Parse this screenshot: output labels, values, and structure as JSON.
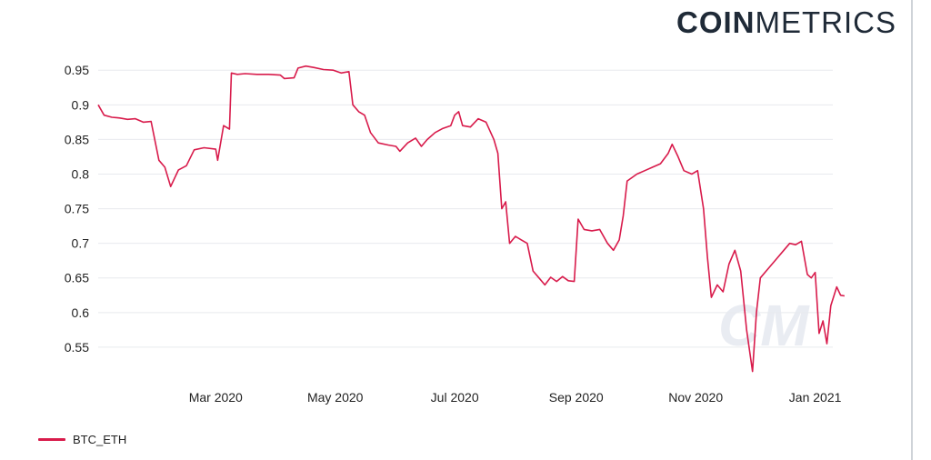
{
  "logo": {
    "bold": "COIN",
    "light": "METRICS"
  },
  "watermark_text": "CM",
  "colors": {
    "line": "#d81b4b",
    "grid": "#e8eaee",
    "text": "#222222"
  },
  "chart_data": {
    "type": "line",
    "x_tick_labels": [
      "Mar 2020",
      "May 2020",
      "Jul 2020",
      "Sep 2020",
      "Nov 2020",
      "Jan 2021"
    ],
    "x_tick_dates": [
      "2020-03-01",
      "2020-05-01",
      "2020-07-01",
      "2020-09-01",
      "2020-11-01",
      "2021-01-01"
    ],
    "xlim": [
      "2020-01-01",
      "2021-01-10"
    ],
    "ylim": [
      0.5,
      0.97
    ],
    "y_ticks": [
      0.55,
      0.6,
      0.65,
      0.7,
      0.75,
      0.8,
      0.85,
      0.9,
      0.95
    ],
    "y_tick_labels": [
      "0.55",
      "0.6",
      "0.65",
      "0.7",
      "0.75",
      "0.8",
      "0.85",
      "0.9",
      "0.95"
    ],
    "grid": true,
    "legend_position": "bottom-left",
    "series": [
      {
        "name": "BTC_ETH",
        "color": "#d81b4b",
        "points": [
          [
            "2020-01-01",
            0.9
          ],
          [
            "2020-01-04",
            0.885
          ],
          [
            "2020-01-08",
            0.882
          ],
          [
            "2020-01-12",
            0.881
          ],
          [
            "2020-01-16",
            0.879
          ],
          [
            "2020-01-20",
            0.88
          ],
          [
            "2020-01-24",
            0.875
          ],
          [
            "2020-01-28",
            0.876
          ],
          [
            "2020-02-01",
            0.82
          ],
          [
            "2020-02-04",
            0.81
          ],
          [
            "2020-02-07",
            0.782
          ],
          [
            "2020-02-11",
            0.806
          ],
          [
            "2020-02-15",
            0.812
          ],
          [
            "2020-02-19",
            0.835
          ],
          [
            "2020-02-24",
            0.838
          ],
          [
            "2020-03-01",
            0.836
          ],
          [
            "2020-03-02",
            0.82
          ],
          [
            "2020-03-05",
            0.87
          ],
          [
            "2020-03-08",
            0.865
          ],
          [
            "2020-03-09",
            0.946
          ],
          [
            "2020-03-12",
            0.944
          ],
          [
            "2020-03-16",
            0.945
          ],
          [
            "2020-03-22",
            0.944
          ],
          [
            "2020-03-28",
            0.944
          ],
          [
            "2020-04-03",
            0.943
          ],
          [
            "2020-04-05",
            0.938
          ],
          [
            "2020-04-10",
            0.939
          ],
          [
            "2020-04-12",
            0.953
          ],
          [
            "2020-04-16",
            0.956
          ],
          [
            "2020-04-20",
            0.954
          ],
          [
            "2020-04-25",
            0.951
          ],
          [
            "2020-04-30",
            0.95
          ],
          [
            "2020-05-04",
            0.946
          ],
          [
            "2020-05-08",
            0.948
          ],
          [
            "2020-05-10",
            0.9
          ],
          [
            "2020-05-13",
            0.89
          ],
          [
            "2020-05-16",
            0.885
          ],
          [
            "2020-05-19",
            0.86
          ],
          [
            "2020-05-23",
            0.845
          ],
          [
            "2020-05-28",
            0.842
          ],
          [
            "2020-06-01",
            0.84
          ],
          [
            "2020-06-03",
            0.833
          ],
          [
            "2020-06-07",
            0.845
          ],
          [
            "2020-06-11",
            0.852
          ],
          [
            "2020-06-14",
            0.84
          ],
          [
            "2020-06-17",
            0.85
          ],
          [
            "2020-06-21",
            0.86
          ],
          [
            "2020-06-25",
            0.866
          ],
          [
            "2020-06-29",
            0.87
          ],
          [
            "2020-07-01",
            0.885
          ],
          [
            "2020-07-03",
            0.89
          ],
          [
            "2020-07-05",
            0.87
          ],
          [
            "2020-07-09",
            0.868
          ],
          [
            "2020-07-13",
            0.88
          ],
          [
            "2020-07-17",
            0.875
          ],
          [
            "2020-07-21",
            0.85
          ],
          [
            "2020-07-23",
            0.83
          ],
          [
            "2020-07-25",
            0.75
          ],
          [
            "2020-07-27",
            0.76
          ],
          [
            "2020-07-29",
            0.7
          ],
          [
            "2020-08-01",
            0.71
          ],
          [
            "2020-08-04",
            0.705
          ],
          [
            "2020-08-07",
            0.7
          ],
          [
            "2020-08-10",
            0.66
          ],
          [
            "2020-08-13",
            0.65
          ],
          [
            "2020-08-16",
            0.64
          ],
          [
            "2020-08-19",
            0.651
          ],
          [
            "2020-08-22",
            0.645
          ],
          [
            "2020-08-25",
            0.652
          ],
          [
            "2020-08-28",
            0.646
          ],
          [
            "2020-08-31",
            0.645
          ],
          [
            "2020-09-02",
            0.735
          ],
          [
            "2020-09-05",
            0.72
          ],
          [
            "2020-09-09",
            0.718
          ],
          [
            "2020-09-13",
            0.72
          ],
          [
            "2020-09-17",
            0.7
          ],
          [
            "2020-09-20",
            0.69
          ],
          [
            "2020-09-23",
            0.705
          ],
          [
            "2020-09-25",
            0.74
          ],
          [
            "2020-09-27",
            0.79
          ],
          [
            "2020-10-02",
            0.8
          ],
          [
            "2020-10-06",
            0.805
          ],
          [
            "2020-10-10",
            0.81
          ],
          [
            "2020-10-14",
            0.815
          ],
          [
            "2020-10-18",
            0.83
          ],
          [
            "2020-10-20",
            0.843
          ],
          [
            "2020-10-23",
            0.825
          ],
          [
            "2020-10-26",
            0.805
          ],
          [
            "2020-10-30",
            0.8
          ],
          [
            "2020-11-02",
            0.805
          ],
          [
            "2020-11-05",
            0.75
          ],
          [
            "2020-11-07",
            0.68
          ],
          [
            "2020-11-09",
            0.622
          ],
          [
            "2020-11-12",
            0.64
          ],
          [
            "2020-11-15",
            0.63
          ],
          [
            "2020-11-18",
            0.67
          ],
          [
            "2020-11-21",
            0.69
          ],
          [
            "2020-11-24",
            0.66
          ],
          [
            "2020-11-27",
            0.575
          ],
          [
            "2020-11-30",
            0.515
          ],
          [
            "2020-12-02",
            0.6
          ],
          [
            "2020-12-04",
            0.65
          ],
          [
            "2020-12-07",
            0.66
          ],
          [
            "2020-12-10",
            0.67
          ],
          [
            "2020-12-13",
            0.68
          ],
          [
            "2020-12-16",
            0.69
          ],
          [
            "2020-12-19",
            0.7
          ],
          [
            "2020-12-22",
            0.698
          ],
          [
            "2020-12-25",
            0.703
          ],
          [
            "2020-12-28",
            0.655
          ],
          [
            "2020-12-30",
            0.65
          ],
          [
            "2021-01-01",
            0.658
          ],
          [
            "2021-01-03",
            0.57
          ],
          [
            "2021-01-05",
            0.588
          ],
          [
            "2021-01-07",
            0.555
          ],
          [
            "2021-01-09",
            0.61
          ],
          [
            "2021-01-12",
            0.637
          ],
          [
            "2021-01-14",
            0.625
          ],
          [
            "2021-01-16",
            0.624
          ]
        ]
      }
    ]
  }
}
